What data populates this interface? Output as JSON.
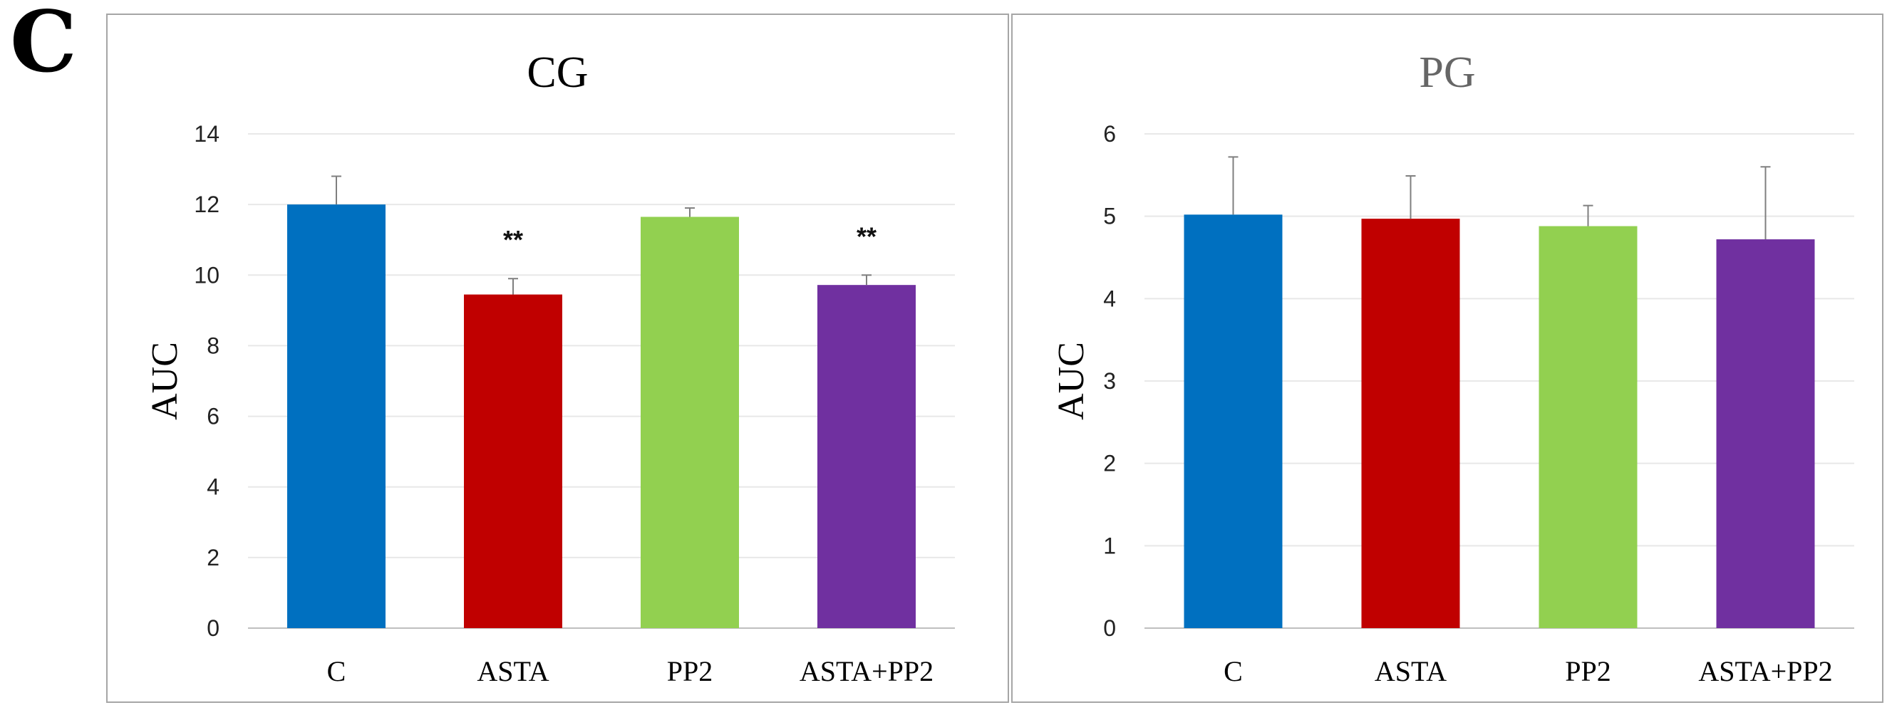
{
  "panel_label": "C",
  "colors": {
    "c": "#0070C0",
    "asta": "#C00000",
    "pp2": "#92D050",
    "asta_pp2": "#7030A0",
    "grid": "#E8E8E8",
    "frame": "#A6A6A6",
    "axis": "#BFBFBF",
    "error_bar": "#7F7F7F"
  },
  "chart_data": [
    {
      "type": "bar",
      "title": "CG",
      "xlabel": "",
      "ylabel": "AUC",
      "ylim": [
        0,
        14
      ],
      "yticks": [
        "0",
        "2",
        "4",
        "6",
        "8",
        "10",
        "12",
        "14"
      ],
      "categories": [
        "C",
        "ASTA",
        "PP2",
        "ASTA+PP2"
      ],
      "values": [
        12.0,
        9.45,
        11.65,
        9.72
      ],
      "errors": [
        0.8,
        0.45,
        0.25,
        0.28
      ],
      "annotations": [
        "",
        "**",
        "",
        "**"
      ],
      "grid": true,
      "title_color": "#000000"
    },
    {
      "type": "bar",
      "title": "PG",
      "xlabel": "",
      "ylabel": "AUC",
      "ylim": [
        0,
        6
      ],
      "yticks": [
        "0",
        "1",
        "2",
        "3",
        "4",
        "5",
        "6"
      ],
      "categories": [
        "C",
        "ASTA",
        "PP2",
        "ASTA+PP2"
      ],
      "values": [
        5.02,
        4.97,
        4.88,
        4.72
      ],
      "errors": [
        0.7,
        0.52,
        0.25,
        0.88
      ],
      "annotations": [
        "",
        "",
        "",
        ""
      ],
      "grid": true,
      "title_color": "#666666"
    }
  ]
}
